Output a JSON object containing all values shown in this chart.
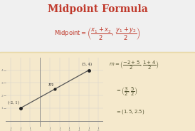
{
  "title": "Midpoint Formula",
  "title_color": "#c0392b",
  "bg_color": "#f0f0f0",
  "box_color": "#f5e9cc",
  "box_edge_color": "#e8d9a8",
  "formula_color": "#c0392b",
  "point1": [
    -2,
    1
  ],
  "point2": [
    5,
    4
  ],
  "midpoint": [
    1.5,
    2.5
  ],
  "midpoint_label": "m",
  "p1_label": "(-2, 1)",
  "p2_label": "(5, 4)",
  "axis_color": "#888888",
  "line_color": "#555555",
  "dot_color": "#222222",
  "text_color": "#555533",
  "xlim": [
    -3.5,
    6.5
  ],
  "ylim": [
    -0.5,
    5.0
  ],
  "xticks": [
    -3,
    -2,
    -1,
    1,
    2,
    3,
    4,
    5,
    6
  ],
  "yticks": [
    1,
    2,
    3,
    4
  ]
}
